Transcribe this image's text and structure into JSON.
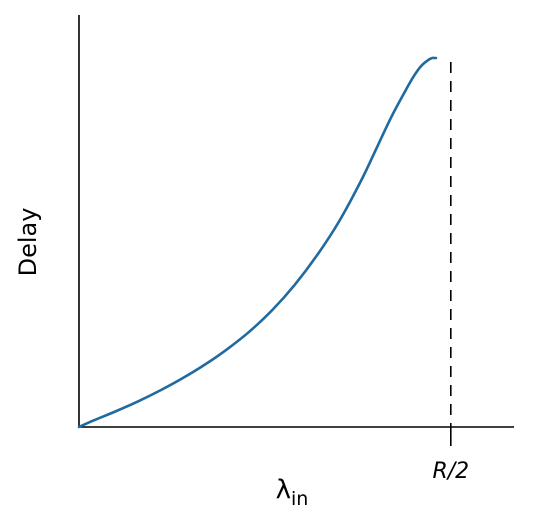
{
  "chart_data": {
    "type": "line",
    "title": "",
    "xlabel": "λ",
    "xlabel_subscript": "in",
    "ylabel": "Delay",
    "x_ticks": [
      {
        "value": 0.5,
        "label": "R/2"
      }
    ],
    "asymptote_x": 0.5,
    "xlim": [
      0,
      0.585
    ],
    "ylim": [
      0,
      1
    ],
    "grid": false,
    "series": [
      {
        "color": "#1f6aa0",
        "x": [
          0.0,
          0.02,
          0.05,
          0.08,
          0.11,
          0.14,
          0.17,
          0.2,
          0.23,
          0.26,
          0.29,
          0.32,
          0.35,
          0.38,
          0.4,
          0.42,
          0.44,
          0.45,
          0.46,
          0.47,
          0.475,
          0.478,
          0.48
        ],
        "y": [
          0.0,
          0.018,
          0.043,
          0.07,
          0.1,
          0.133,
          0.17,
          0.212,
          0.26,
          0.317,
          0.385,
          0.465,
          0.558,
          0.67,
          0.755,
          0.84,
          0.915,
          0.95,
          0.978,
          0.995,
          1.0,
          1.0,
          1.0
        ]
      }
    ]
  }
}
